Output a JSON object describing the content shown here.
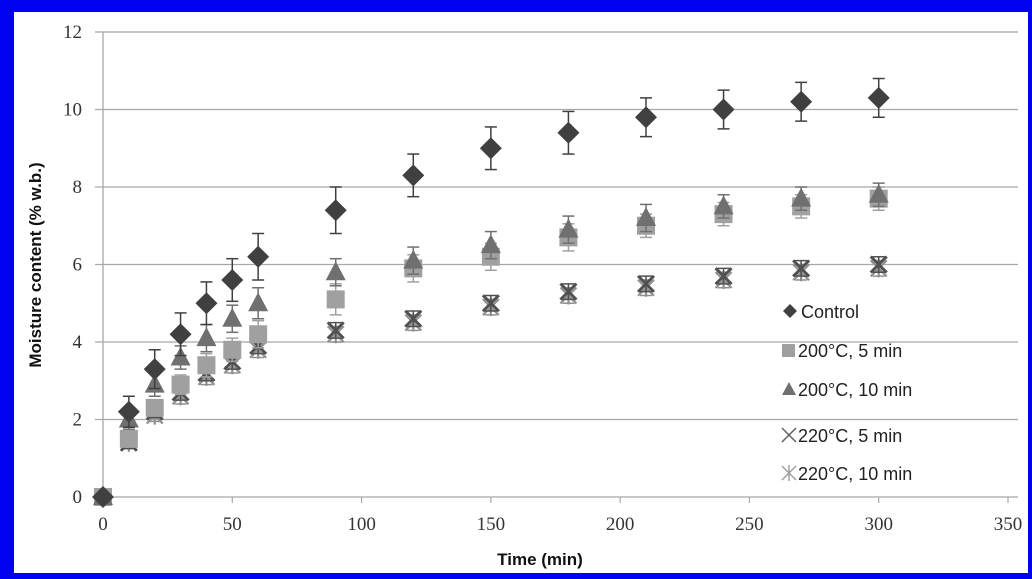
{
  "chart_data": {
    "type": "scatter",
    "title": "",
    "xlabel": "Time (min)",
    "ylabel": "Moisture content (% w.b.)",
    "xlim": [
      0,
      350
    ],
    "ylim": [
      0,
      12
    ],
    "xticks": [
      0,
      50,
      100,
      150,
      200,
      250,
      300,
      350
    ],
    "yticks": [
      0,
      2,
      4,
      6,
      8,
      10,
      12
    ],
    "grid": "horizontal",
    "legend_position": "right-inside",
    "x": [
      0,
      10,
      20,
      30,
      40,
      50,
      60,
      90,
      120,
      150,
      180,
      210,
      240,
      270,
      300
    ],
    "series": [
      {
        "name": "Control",
        "marker": "diamond",
        "color": "#404040",
        "values": [
          0,
          2.2,
          3.3,
          4.2,
          5.0,
          5.6,
          6.2,
          7.4,
          8.3,
          9.0,
          9.4,
          9.8,
          10.0,
          10.2,
          10.3
        ],
        "error": [
          0,
          0.4,
          0.5,
          0.55,
          0.55,
          0.55,
          0.6,
          0.6,
          0.55,
          0.55,
          0.55,
          0.5,
          0.5,
          0.5,
          0.5
        ]
      },
      {
        "name": "200°C, 5 min",
        "marker": "square",
        "color": "#a0a0a0",
        "values": [
          0,
          1.5,
          2.3,
          2.9,
          3.4,
          3.8,
          4.2,
          5.1,
          5.9,
          6.2,
          6.7,
          7.0,
          7.3,
          7.5,
          7.7
        ],
        "error": [
          0,
          0.2,
          0.2,
          0.25,
          0.3,
          0.3,
          0.35,
          0.4,
          0.35,
          0.35,
          0.35,
          0.3,
          0.3,
          0.3,
          0.3
        ]
      },
      {
        "name": "200°C, 10 min",
        "marker": "triangle",
        "color": "#707070",
        "values": [
          0,
          2.0,
          2.9,
          3.6,
          4.1,
          4.6,
          5.0,
          5.8,
          6.1,
          6.5,
          6.9,
          7.2,
          7.5,
          7.7,
          7.8
        ],
        "error": [
          0,
          0.25,
          0.3,
          0.3,
          0.35,
          0.35,
          0.4,
          0.35,
          0.35,
          0.35,
          0.35,
          0.35,
          0.3,
          0.3,
          0.3
        ]
      },
      {
        "name": "220°C, 5 min",
        "marker": "x",
        "color": "#505050",
        "values": [
          0,
          1.4,
          2.2,
          2.7,
          3.2,
          3.5,
          3.9,
          4.3,
          4.6,
          5.0,
          5.3,
          5.5,
          5.7,
          5.9,
          6.0
        ],
        "error": [
          0,
          0.15,
          0.15,
          0.2,
          0.2,
          0.2,
          0.2,
          0.2,
          0.2,
          0.2,
          0.2,
          0.2,
          0.2,
          0.2,
          0.2
        ]
      },
      {
        "name": "220°C, 10 min",
        "marker": "asterisk",
        "color": "#909090",
        "values": [
          0,
          1.4,
          2.1,
          2.6,
          3.1,
          3.4,
          3.8,
          4.2,
          4.5,
          4.9,
          5.2,
          5.4,
          5.6,
          5.8,
          5.9
        ],
        "error": [
          0,
          0.15,
          0.15,
          0.2,
          0.2,
          0.2,
          0.2,
          0.2,
          0.2,
          0.2,
          0.2,
          0.2,
          0.2,
          0.2,
          0.2
        ]
      }
    ]
  },
  "legend": {
    "items": [
      {
        "label": "Control",
        "icon": "diamond-icon"
      },
      {
        "label": "200°C, 5 min",
        "icon": "square-icon"
      },
      {
        "label": "200°C, 10 min",
        "icon": "triangle-icon"
      },
      {
        "label": "220°C, 5 min",
        "icon": "x-mark-icon"
      },
      {
        "label": "220°C, 10 min",
        "icon": "asterisk-icon"
      }
    ]
  },
  "colors": {
    "frame_border": "#0000f0",
    "background": "#ffffff",
    "grid": "#a8a8a8"
  }
}
